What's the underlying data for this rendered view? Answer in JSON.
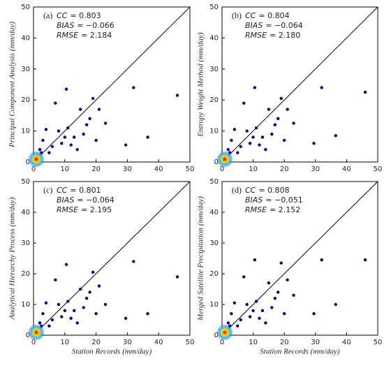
{
  "chart_data": [
    {
      "type": "scatter",
      "label": "(a)",
      "stats": [
        {
          "name": "CC",
          "text": "= 0.803"
        },
        {
          "name": "BIAS",
          "text": "= −0.066"
        },
        {
          "name": "RMSE",
          "text": "= 2.184"
        }
      ],
      "ylabel": "Principal Component Analysis (mm/day)",
      "x": [
        46,
        32,
        36.5,
        29.5,
        23,
        21,
        19,
        18,
        17,
        15,
        14,
        12,
        10.5,
        10,
        9,
        8,
        7,
        6,
        5,
        4,
        3,
        2,
        1,
        0.5,
        20,
        16,
        13,
        11,
        2.5,
        1
      ],
      "values": [
        21.5,
        24,
        8,
        5.5,
        12.5,
        17,
        20.5,
        14,
        12,
        17,
        4,
        5.5,
        23.5,
        8,
        6,
        10,
        19,
        5,
        3,
        10.5,
        7,
        4,
        2,
        1,
        7,
        9,
        8,
        11,
        3,
        0.5
      ],
      "color": "#00008b",
      "xlim": [
        0,
        50
      ],
      "ylim": [
        0,
        50
      ],
      "xticks": [
        0,
        10,
        20,
        30,
        40,
        50
      ],
      "yticks": [
        0,
        10,
        20,
        30,
        40,
        50
      ]
    },
    {
      "type": "scatter",
      "label": "(b)",
      "stats": [
        {
          "name": "CC",
          "text": "= 0.804"
        },
        {
          "name": "BIAS",
          "text": "= −0.064"
        },
        {
          "name": "RMSE",
          "text": "= 2.180"
        }
      ],
      "ylabel": "Entropy Weight Method (mm/day)",
      "x": [
        46,
        32,
        36.5,
        29.5,
        23,
        21,
        19,
        18,
        17,
        15,
        14,
        12,
        10.5,
        10,
        9,
        8,
        7,
        6,
        5,
        4,
        3,
        2,
        1,
        0.5,
        20,
        16,
        13,
        11,
        2.5,
        1
      ],
      "values": [
        22.5,
        24,
        8.5,
        6,
        12.5,
        17,
        20.5,
        14,
        12,
        17,
        4,
        5.5,
        24,
        8,
        6,
        10,
        19,
        5,
        3,
        10.5,
        7,
        4,
        2,
        1,
        7,
        9,
        8,
        11,
        3,
        0.5
      ],
      "color": "#00008b",
      "xlim": [
        0,
        50
      ],
      "ylim": [
        0,
        50
      ],
      "xticks": [
        0,
        10,
        20,
        30,
        40,
        50
      ],
      "yticks": [
        0,
        10,
        20,
        30,
        40,
        50
      ]
    },
    {
      "type": "scatter",
      "label": "(c)",
      "stats": [
        {
          "name": "CC",
          "text": "= 0.801"
        },
        {
          "name": "BIAS",
          "text": "= −0.064"
        },
        {
          "name": "RMSE",
          "text": "= 2.195"
        }
      ],
      "ylabel": "Analytical Hierarchy Process (mm/day)",
      "xlabel": "Station Records (mm/day)",
      "x": [
        46,
        32,
        36.5,
        29.5,
        23,
        21,
        19,
        18,
        17,
        15,
        14,
        12,
        10.5,
        10,
        9,
        8,
        7,
        6,
        5,
        4,
        3,
        2,
        1,
        0.5,
        20,
        16,
        13,
        11,
        2.5,
        1
      ],
      "values": [
        19,
        24,
        7,
        5.5,
        10,
        16,
        20.5,
        14,
        12,
        15,
        4,
        5.5,
        23,
        8,
        6,
        10,
        18,
        5,
        3,
        10.5,
        7,
        4,
        2,
        1,
        7,
        9,
        8,
        11,
        3,
        0.5
      ],
      "color": "#00008b",
      "xlim": [
        0,
        50
      ],
      "ylim": [
        0,
        50
      ],
      "xticks": [
        0,
        10,
        20,
        30,
        40,
        50
      ],
      "yticks": [
        0,
        10,
        20,
        30,
        40,
        50
      ]
    },
    {
      "type": "scatter",
      "label": "(d)",
      "stats": [
        {
          "name": "CC",
          "text": "= 0.808"
        },
        {
          "name": "BIAS",
          "text": "= −0.051"
        },
        {
          "name": "RMSE",
          "text": "= 2.152"
        }
      ],
      "ylabel": "Merged Satellite Precipitation (mm/day)",
      "xlabel": "Station Records (mm/day)",
      "x": [
        46,
        32,
        36.5,
        29.5,
        23,
        21,
        19,
        18,
        17,
        15,
        14,
        12,
        10.5,
        10,
        9,
        8,
        7,
        6,
        5,
        4,
        3,
        2,
        1,
        0.5,
        20,
        16,
        13,
        11,
        2.5,
        1
      ],
      "values": [
        24.5,
        24.5,
        10,
        7,
        13,
        18,
        23.5,
        14,
        12,
        17,
        4,
        5.5,
        24.5,
        8,
        6,
        10,
        19,
        5,
        3,
        10.5,
        7,
        4,
        2,
        1,
        7,
        9,
        8,
        11,
        3,
        0.5
      ],
      "color": "#00008b",
      "xlim": [
        0,
        50
      ],
      "ylim": [
        0,
        50
      ],
      "xticks": [
        0,
        10,
        20,
        30,
        40,
        50
      ],
      "yticks": [
        0,
        10,
        20,
        30,
        40,
        50
      ]
    }
  ]
}
